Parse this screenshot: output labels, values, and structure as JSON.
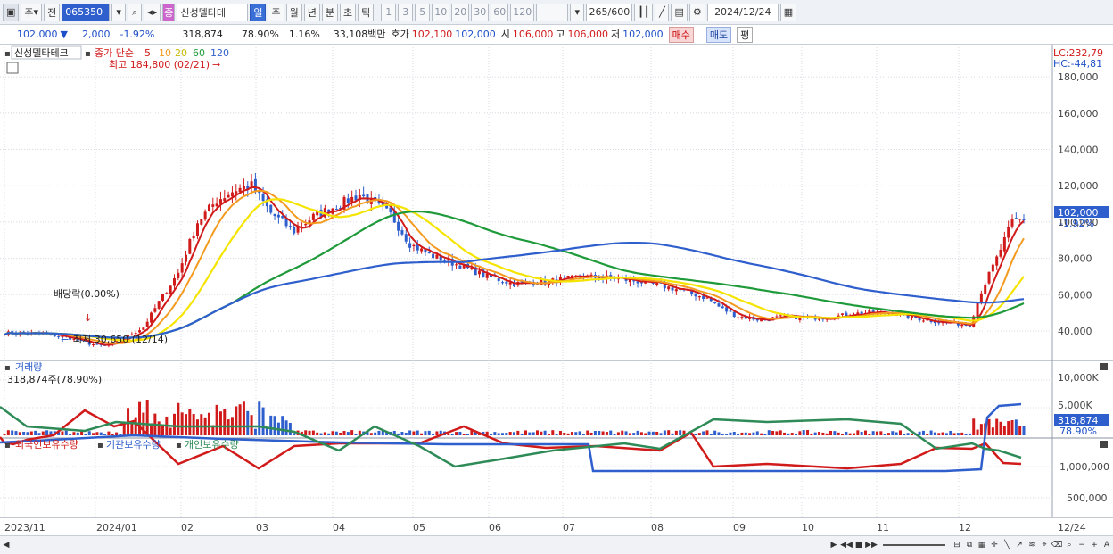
{
  "toolbar": {
    "market": "주",
    "prev": "전",
    "code": "065350",
    "stock_name": "신성델타테",
    "badge": "종",
    "periods": [
      "일",
      "주",
      "월",
      "년",
      "분",
      "초",
      "틱"
    ],
    "selected_period": "일",
    "intervals": [
      "1",
      "3",
      "5",
      "10",
      "20",
      "30",
      "60",
      "120"
    ],
    "count": "265",
    "count_max": "/600",
    "date": "2024/12/24"
  },
  "quote": {
    "price": "102,000",
    "arrow": "▼",
    "change": "2,000",
    "change_pct": "-1.92%",
    "volume": "318,874",
    "volume_ratio": "78.90%",
    "turnover": "1.16%",
    "amount": "33,108백만",
    "ask_label": "호가",
    "ask": "102,100",
    "bid": "102,000",
    "open_label": "시",
    "open": "106,000",
    "high_label": "고",
    "high": "106,000",
    "low_label": "저",
    "low": "102,000",
    "buy_label": "매수",
    "sell_label": "매도",
    "avg_label": "평"
  },
  "price_panel": {
    "name": "신성델타테크",
    "legend_close": "종가 단순",
    "ma_periods": [
      "5",
      "10",
      "20",
      "60",
      "120"
    ],
    "ma_colors": [
      "#d11a1a",
      "#f39a1f",
      "#f5e400",
      "#1e9a3a",
      "#2f5fcc"
    ],
    "high_label": "최고 184,800 (02/21)",
    "low_label": "최저 30,650 (12/14)",
    "dividend_label": "배당락(0.00%)",
    "lc": "LC:232,79",
    "hc": "HC:-44,81",
    "price_tag": "102,000",
    "price_pct": "-1.92%",
    "y_ticks": [
      "180,000",
      "160,000",
      "140,000",
      "120,000",
      "100,000",
      "80,000",
      "60,000",
      "40,000"
    ]
  },
  "volume_panel": {
    "title": "거래량",
    "info": "318,874주(78.90%)",
    "tag": "318,874",
    "tag_pct": "78.90%",
    "y_ticks": [
      "10,000K",
      "5,000K"
    ]
  },
  "holdings_panel": {
    "series": [
      "외국인보유수량",
      "기관보유수량",
      "개인보유수량"
    ],
    "colors": [
      "#d11a1a",
      "#2f5fcc",
      "#2e8b57"
    ],
    "y_ticks": [
      "1,000,000",
      "500,000"
    ]
  },
  "x_axis": [
    "2023/11",
    "2024/01",
    "02",
    "03",
    "04",
    "05",
    "06",
    "07",
    "08",
    "09",
    "10",
    "11",
    "12",
    "12/24"
  ],
  "colors": {
    "up": "#d11a1a",
    "down": "#2f5fcc"
  }
}
